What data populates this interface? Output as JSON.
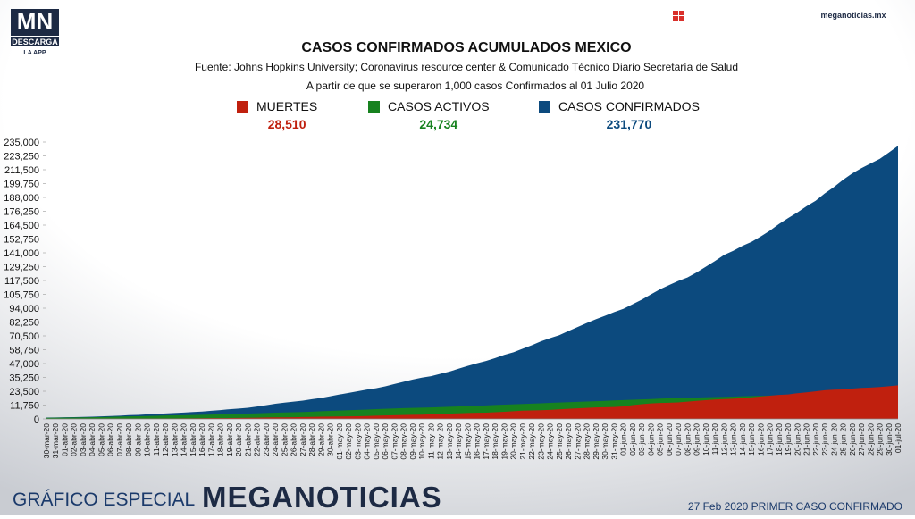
{
  "branding": {
    "logo": "MN",
    "download": "DESCARGA",
    "app": "LA APP",
    "site": "meganoticias.mx",
    "footer_left": "GRÁFICO ESPECIAL",
    "footer_brand": "MEGANOTICIAS",
    "footer_right": "27 Feb 2020 PRIMER CASO CONFIRMADO"
  },
  "chart_data": {
    "type": "area",
    "title": "CASOS CONFIRMADOS ACUMULADOS MEXICO",
    "subtitle": "Fuente: Johns Hopkins University; Coronavirus resource center & Comunicado Técnico Diario Secretaría de Salud",
    "note": "A partir de que se superaron 1,000 casos Confirmados al 01 Julio 2020",
    "categories": [
      "30-mar-20",
      "31-mar-20",
      "01-abr-20",
      "02-abr-20",
      "03-abr-20",
      "04-abr-20",
      "05-abr-20",
      "06-abr-20",
      "07-abr-20",
      "08-abr-20",
      "09-abr-20",
      "10-abr-20",
      "11-abr-20",
      "12-abr-20",
      "13-abr-20",
      "14-abr-20",
      "15-abr-20",
      "16-abr-20",
      "17-abr-20",
      "18-abr-20",
      "19-abr-20",
      "20-abr-20",
      "21-abr-20",
      "22-abr-20",
      "23-abr-20",
      "24-abr-20",
      "25-abr-20",
      "26-abr-20",
      "27-abr-20",
      "28-abr-20",
      "29-abr-20",
      "30-abr-20",
      "01-may-20",
      "02-may-20",
      "03-may-20",
      "04-may-20",
      "05-may-20",
      "06-may-20",
      "07-may-20",
      "08-may-20",
      "09-may-20",
      "10-may-20",
      "11-may-20",
      "12-may-20",
      "13-may-20",
      "14-may-20",
      "15-may-20",
      "16-may-20",
      "17-may-20",
      "18-may-20",
      "19-may-20",
      "20-may-20",
      "21-may-20",
      "22-may-20",
      "23-may-20",
      "24-may-20",
      "25-may-20",
      "26-may-20",
      "27-may-20",
      "28-may-20",
      "29-may-20",
      "30-may-20",
      "31-may-20",
      "01-jun-20",
      "02-jun-20",
      "03-jun-20",
      "04-jun-20",
      "05-jun-20",
      "06-jun-20",
      "07-jun-20",
      "08-jun-20",
      "09-jun-20",
      "10-jun-20",
      "11-jun-20",
      "12-jun-20",
      "13-jun-20",
      "14-jun-20",
      "15-jun-20",
      "16-jun-20",
      "17-jun-20",
      "18-jun-20",
      "19-jun-20",
      "20-jun-20",
      "21-jun-20",
      "22-jun-20",
      "23-jun-20",
      "24-jun-20",
      "25-jun-20",
      "26-jun-20",
      "27-jun-20",
      "28-jun-20",
      "29-jun-20",
      "30-jun-20",
      "01-jul-20"
    ],
    "series": [
      {
        "name": "CASOS CONFIRMADOS",
        "color": "#0c4a7e",
        "total": {
          "value": 231770,
          "label": "231,770"
        },
        "values": [
          1094,
          1215,
          1378,
          1510,
          1688,
          1890,
          2143,
          2439,
          2785,
          3181,
          3441,
          3844,
          4219,
          4661,
          5014,
          5399,
          5847,
          6297,
          6875,
          7497,
          8261,
          8772,
          9501,
          10544,
          11633,
          12872,
          13842,
          14677,
          15529,
          16752,
          17799,
          19224,
          20739,
          22088,
          23471,
          24905,
          26025,
          27634,
          29616,
          31522,
          33460,
          35022,
          36327,
          38324,
          40186,
          42595,
          45032,
          47144,
          49219,
          51633,
          54346,
          56594,
          59567,
          62527,
          65856,
          68620,
          71105,
          74560,
          78023,
          81400,
          84627,
          87512,
          90664,
          93435,
          97326,
          101238,
          105680,
          110026,
          113619,
          117103,
          120102,
          124301,
          129184,
          133974,
          139196,
          142690,
          146837,
          150264,
          154863,
          159793,
          165455,
          170485,
          175202,
          180545,
          185122,
          191410,
          196847,
          202951,
          208392,
          212802,
          216852,
          220657,
          226089,
          231770
        ]
      },
      {
        "name": "CASOS ACTIVOS",
        "color": "#17821f",
        "total": {
          "value": 24734,
          "label": "24,734"
        },
        "values": [
          900,
          1000,
          1100,
          1200,
          1300,
          1450,
          1600,
          1800,
          2000,
          2200,
          2300,
          2500,
          2700,
          2900,
          3000,
          3100,
          3300,
          3500,
          3700,
          3900,
          4100,
          4300,
          4500,
          4700,
          5000,
          5300,
          5500,
          5700,
          5900,
          6200,
          6500,
          6800,
          7100,
          7400,
          7700,
          8000,
          8300,
          8600,
          8900,
          9200,
          9400,
          9600,
          9800,
          10000,
          10300,
          10600,
          10900,
          11200,
          11500,
          11800,
          12100,
          12400,
          12700,
          13000,
          13300,
          13600,
          13900,
          14200,
          14500,
          14800,
          15100,
          15400,
          15700,
          16000,
          16300,
          16600,
          16900,
          17200,
          17500,
          17800,
          18000,
          18200,
          18400,
          18600,
          18800,
          19000,
          19200,
          19400,
          19600,
          19800,
          20000,
          20300,
          20600,
          20900,
          21200,
          21500,
          21800,
          22100,
          22400,
          22800,
          23200,
          23600,
          24000,
          24734
        ]
      },
      {
        "name": "MUERTES",
        "color": "#c0200e",
        "total": {
          "value": 28510,
          "label": "28,510"
        },
        "values": [
          28,
          29,
          37,
          50,
          79,
          94,
          125,
          141,
          174,
          194,
          233,
          273,
          296,
          332,
          406,
          449,
          486,
          546,
          650,
          686,
          712,
          857,
          970,
          1069,
          1221,
          1305,
          1351,
          1434,
          1569,
          1732,
          1859,
          1972,
          2061,
          2154,
          2271,
          2507,
          2704,
          2961,
          3160,
          3353,
          3465,
          3573,
          3926,
          4220,
          4477,
          4767,
          5045,
          5177,
          5332,
          5666,
          6090,
          6510,
          6989,
          7179,
          7394,
          7633,
          8134,
          8597,
          9044,
          9415,
          9779,
          9930,
          10167,
          10637,
          11729,
          12545,
          13170,
          13511,
          13699,
          14053,
          14649,
          15357,
          15944,
          16448,
          16872,
          17141,
          17580,
          18310,
          19080,
          19747,
          20394,
          20781,
          21825,
          22584,
          23377,
          24324,
          24800,
          25060,
          25779,
          26381,
          26648,
          27121,
          27769,
          28510
        ]
      }
    ],
    "ylim": [
      0,
      235000
    ],
    "yticks": [
      0,
      {
        "value": 11750,
        "label": "11,750"
      },
      {
        "value": 23500,
        "label": "23,500"
      },
      {
        "value": 35250,
        "label": "35,250"
      },
      {
        "value": 47000,
        "label": "47,000"
      },
      {
        "value": 58750,
        "label": "58,750"
      },
      {
        "value": 70500,
        "label": "70,500"
      },
      {
        "value": 82250,
        "label": "82,250"
      },
      {
        "value": 94000,
        "label": "94,000"
      },
      {
        "value": 105750,
        "label": "105,750"
      },
      {
        "value": 117500,
        "label": "117,500"
      },
      {
        "value": 129250,
        "label": "129,250"
      },
      {
        "value": 141000,
        "label": "141,000"
      },
      {
        "value": 152750,
        "label": "152,750"
      },
      {
        "value": 164500,
        "label": "164,500"
      },
      {
        "value": 176250,
        "label": "176,250"
      },
      {
        "value": 188000,
        "label": "188,000"
      },
      {
        "value": 199750,
        "label": "199,750"
      },
      {
        "value": 211500,
        "label": "211,500"
      },
      {
        "value": 223250,
        "label": "223,250"
      },
      {
        "value": 235000,
        "label": "235,000"
      }
    ],
    "grid": false
  }
}
